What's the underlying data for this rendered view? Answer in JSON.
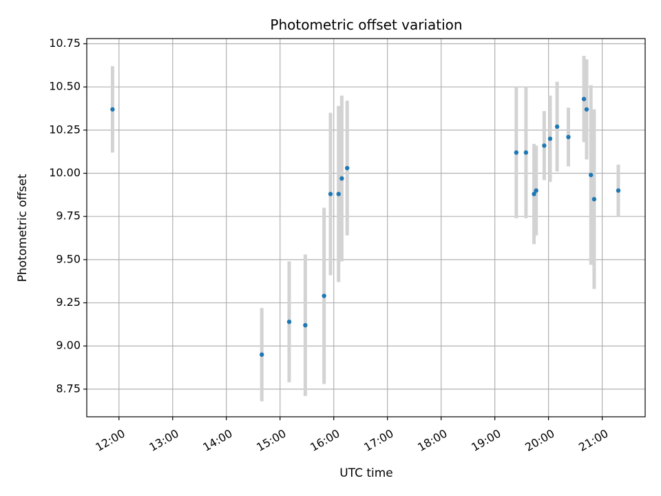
{
  "chart_data": {
    "type": "scatter",
    "title": "Photometric offset variation",
    "xlabel": "UTC time",
    "ylabel": "Photometric offset",
    "grid": true,
    "x_unit": "hours UTC",
    "xlim": [
      11.4,
      21.8
    ],
    "ylim": [
      8.59,
      10.78
    ],
    "x_ticks": [
      {
        "value": 12,
        "label": "12:00"
      },
      {
        "value": 13,
        "label": "13:00"
      },
      {
        "value": 14,
        "label": "14:00"
      },
      {
        "value": 15,
        "label": "15:00"
      },
      {
        "value": 16,
        "label": "16:00"
      },
      {
        "value": 17,
        "label": "17:00"
      },
      {
        "value": 18,
        "label": "18:00"
      },
      {
        "value": 19,
        "label": "19:00"
      },
      {
        "value": 20,
        "label": "20:00"
      },
      {
        "value": 21,
        "label": "21:00"
      }
    ],
    "y_ticks": [
      {
        "value": 8.75,
        "label": "8.75"
      },
      {
        "value": 9.0,
        "label": "9.00"
      },
      {
        "value": 9.25,
        "label": "9.25"
      },
      {
        "value": 9.5,
        "label": "9.50"
      },
      {
        "value": 9.75,
        "label": "9.75"
      },
      {
        "value": 10.0,
        "label": "10.00"
      },
      {
        "value": 10.25,
        "label": "10.25"
      },
      {
        "value": 10.5,
        "label": "10.50"
      },
      {
        "value": 10.75,
        "label": "10.75"
      }
    ],
    "point_color": "#1f77b4",
    "errorbar_color": "#d3d3d3",
    "points": [
      {
        "x": 11.88,
        "y": 10.37,
        "err": 0.25
      },
      {
        "x": 14.66,
        "y": 8.95,
        "err": 0.27
      },
      {
        "x": 15.17,
        "y": 9.14,
        "err": 0.35
      },
      {
        "x": 15.47,
        "y": 9.12,
        "err": 0.41
      },
      {
        "x": 15.82,
        "y": 9.29,
        "err": 0.51
      },
      {
        "x": 15.94,
        "y": 9.88,
        "err": 0.47
      },
      {
        "x": 16.09,
        "y": 9.88,
        "err": 0.51
      },
      {
        "x": 16.15,
        "y": 9.97,
        "err": 0.48
      },
      {
        "x": 16.25,
        "y": 10.03,
        "err": 0.39
      },
      {
        "x": 19.4,
        "y": 10.12,
        "err": 0.38
      },
      {
        "x": 19.58,
        "y": 10.12,
        "err": 0.38
      },
      {
        "x": 19.73,
        "y": 9.88,
        "err": 0.29
      },
      {
        "x": 19.77,
        "y": 9.9,
        "err": 0.26
      },
      {
        "x": 19.92,
        "y": 10.16,
        "err": 0.2
      },
      {
        "x": 20.03,
        "y": 10.2,
        "err": 0.25
      },
      {
        "x": 20.16,
        "y": 10.27,
        "err": 0.26
      },
      {
        "x": 20.37,
        "y": 10.21,
        "err": 0.17
      },
      {
        "x": 20.66,
        "y": 10.43,
        "err": 0.25
      },
      {
        "x": 20.71,
        "y": 10.37,
        "err": 0.29
      },
      {
        "x": 20.79,
        "y": 9.99,
        "err": 0.52
      },
      {
        "x": 20.85,
        "y": 9.85,
        "err": 0.52
      },
      {
        "x": 21.3,
        "y": 9.9,
        "err": 0.15
      }
    ]
  }
}
